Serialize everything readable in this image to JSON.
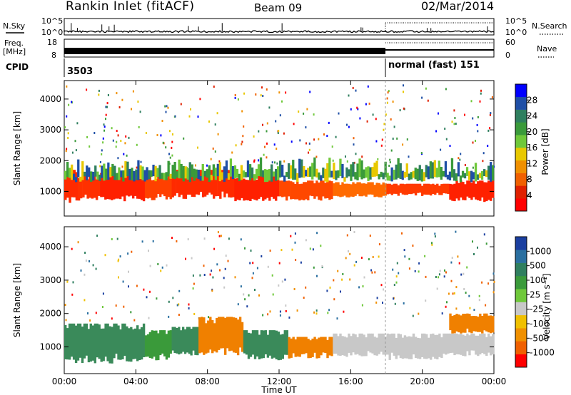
{
  "header": {
    "station": "Rankin Inlet (fitACF)",
    "beam": "Beam 09",
    "date": "02/Mar/2014"
  },
  "side_labels": {
    "nsky": "N.Sky",
    "nsearch": "N.Search",
    "freq_line1": "Freq.",
    "freq_line2": "[MHz]",
    "nave": "Nave",
    "cpid": "CPID",
    "nsky_ticks": [
      "10^5",
      "10^0"
    ],
    "nsearch_ticks": [
      "10^5",
      "10^0"
    ],
    "freq_ticks": [
      "18",
      "8"
    ],
    "nave_ticks": [
      "60",
      "0"
    ],
    "cpid_left": "3503",
    "cpid_right": "normal (fast) 151"
  },
  "chart_data": [
    {
      "type": "heatmap",
      "name_label": "Power",
      "ylabel": "Slant Range [km]",
      "xlabel": "",
      "yticks": [
        "1000",
        "2000",
        "3000",
        "4000"
      ],
      "ylim": [
        200,
        4600
      ],
      "xlim": [
        0,
        24
      ],
      "colorbar": {
        "label": "Power [dB]",
        "ticks": [
          "4",
          "8",
          "12",
          "16",
          "20",
          "24",
          "28"
        ],
        "colors": [
          "#0000ff",
          "#1f4fa6",
          "#2f7f5f",
          "#3a9a3a",
          "#6fc83a",
          "#e8c800",
          "#f09000",
          "#f06000",
          "#e02000",
          "#ff0000"
        ]
      },
      "bands": [
        {
          "x": [
            0.0,
            0.75
          ],
          "y": [
            600,
            1700
          ],
          "color": "#ff2a00"
        },
        {
          "x": [
            0.75,
            2.0
          ],
          "y": [
            700,
            1500
          ],
          "color": "#ff3000"
        },
        {
          "x": [
            2.0,
            4.5
          ],
          "y": [
            650,
            1600
          ],
          "color": "#ff2000"
        },
        {
          "x": [
            4.5,
            6.0
          ],
          "y": [
            700,
            1500
          ],
          "color": "#ff4000"
        },
        {
          "x": [
            6.0,
            9.5
          ],
          "y": [
            750,
            1700
          ],
          "color": "#ff2a00"
        },
        {
          "x": [
            9.5,
            12.0
          ],
          "y": [
            650,
            1500
          ],
          "color": "#ff2000"
        },
        {
          "x": [
            12.0,
            15.0
          ],
          "y": [
            700,
            1350
          ],
          "color": "#ff4800"
        },
        {
          "x": [
            15.0,
            18.0
          ],
          "y": [
            800,
            1300
          ],
          "color": "#ff6a00"
        },
        {
          "x": [
            18.0,
            21.5
          ],
          "y": [
            850,
            1250
          ],
          "color": "#ff3a00"
        },
        {
          "x": [
            21.5,
            24.0
          ],
          "y": [
            650,
            1350
          ],
          "color": "#ff2000"
        }
      ],
      "upper_band": {
        "y": [
          1300,
          2000
        ],
        "colors": [
          "#3a9a3a",
          "#2f7f5f",
          "#1f4fa6",
          "#6fc83a",
          "#e8c800"
        ]
      }
    },
    {
      "type": "heatmap",
      "name_label": "Velocity",
      "ylabel": "Slant Range [km]",
      "xlabel": "Time UT",
      "xticks": [
        "00:00",
        "04:00",
        "08:00",
        "12:00",
        "16:00",
        "20:00",
        "00:00"
      ],
      "yticks": [
        "1000",
        "2000",
        "3000",
        "4000"
      ],
      "ylim": [
        200,
        4600
      ],
      "xlim": [
        0,
        24
      ],
      "colorbar": {
        "label": "Velocity [m s⁻¹]",
        "ticks": [
          "1000",
          "500",
          "100",
          "25",
          "-25",
          "-100",
          "-500",
          "-1000"
        ],
        "colors": [
          "#1a3fa0",
          "#2a6fa0",
          "#2f7f5f",
          "#3a9a3a",
          "#6fc83a",
          "#c8c8c8",
          "#f0c000",
          "#f09000",
          "#f06000",
          "#ff0000"
        ]
      },
      "bands": [
        {
          "x": [
            0.0,
            4.5
          ],
          "y": [
            500,
            1700
          ],
          "color": "#3a8a5a"
        },
        {
          "x": [
            4.5,
            6.0
          ],
          "y": [
            600,
            1500
          ],
          "color": "#3a9a3a"
        },
        {
          "x": [
            6.0,
            7.5
          ],
          "y": [
            700,
            1600
          ],
          "color": "#3a8a5a"
        },
        {
          "x": [
            7.5,
            10.0
          ],
          "y": [
            750,
            1900
          ],
          "color": "#f08000"
        },
        {
          "x": [
            10.0,
            12.5
          ],
          "y": [
            600,
            1500
          ],
          "color": "#3a8a5a"
        },
        {
          "x": [
            12.5,
            15.0
          ],
          "y": [
            650,
            1300
          ],
          "color": "#f08000"
        },
        {
          "x": [
            15.0,
            18.0
          ],
          "y": [
            700,
            1400
          ],
          "color": "#c8c8c8"
        },
        {
          "x": [
            18.0,
            21.5
          ],
          "y": [
            600,
            1400
          ],
          "color": "#c8c8c8"
        },
        {
          "x": [
            21.5,
            24.0
          ],
          "y": [
            700,
            1400
          ],
          "color": "#c8c8c8"
        },
        {
          "x": [
            21.5,
            24.0
          ],
          "y": [
            1400,
            2000
          ],
          "color": "#f08000"
        }
      ]
    }
  ]
}
